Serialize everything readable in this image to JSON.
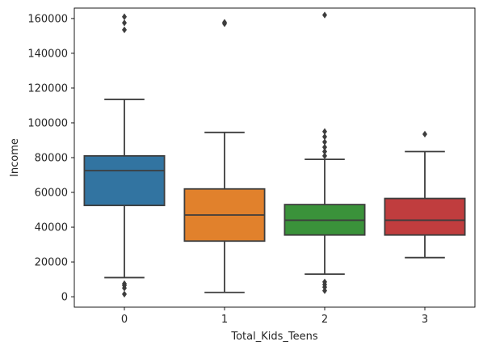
{
  "chart_data": {
    "type": "box",
    "xlabel": "Total_Kids_Teens",
    "ylabel": "Income",
    "ylim": [
      -6000,
      166000
    ],
    "y_ticks": [
      0,
      20000,
      40000,
      60000,
      80000,
      100000,
      120000,
      140000,
      160000
    ],
    "y_tick_labels": [
      "0",
      "20000",
      "40000",
      "60000",
      "80000",
      "100000",
      "120000",
      "140000",
      "160000"
    ],
    "grid": false,
    "categories": [
      "0",
      "1",
      "2",
      "3"
    ],
    "boxes": [
      {
        "category": "0",
        "color": "#3274a1",
        "whisker_low": 11000,
        "q1": 52500,
        "median": 72500,
        "q3": 81000,
        "whisker_high": 113500,
        "outliers": [
          1500,
          5000,
          6500,
          7500,
          153500,
          157500,
          161000
        ]
      },
      {
        "category": "1",
        "color": "#e1812c",
        "whisker_low": 2500,
        "q1": 32000,
        "median": 47000,
        "q3": 62000,
        "whisker_high": 94500,
        "outliers": [
          157000,
          157800
        ]
      },
      {
        "category": "2",
        "color": "#3a923a",
        "whisker_low": 13000,
        "q1": 35500,
        "median": 44000,
        "q3": 53000,
        "whisker_high": 79000,
        "outliers": [
          3500,
          5500,
          7000,
          8500,
          81000,
          83500,
          86000,
          89000,
          92000,
          95000,
          162000
        ]
      },
      {
        "category": "3",
        "color": "#c03d3e",
        "whisker_low": 22500,
        "q1": 35500,
        "median": 44000,
        "q3": 56500,
        "whisker_high": 83500,
        "outliers": [
          93500
        ]
      }
    ]
  }
}
